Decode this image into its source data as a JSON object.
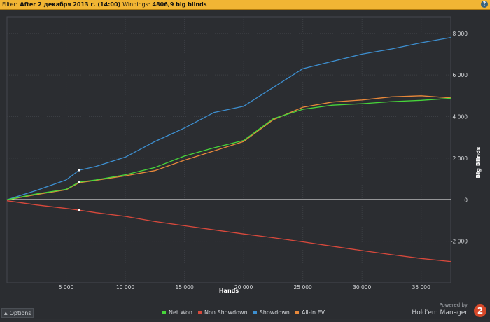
{
  "filter": {
    "label": "Filter:",
    "value": "After 2 декабря 2013 г. (14:00)",
    "winnings_label": "Winnings:",
    "winnings_value": "4806,9 big blinds",
    "help_icon": "?"
  },
  "options_label": "Options",
  "brand": {
    "powered_by": "Powered by",
    "name": "Hold'em Manager",
    "logo_text": "2"
  },
  "colors": {
    "net_won": "#47d63a",
    "non_showdown": "#d9493c",
    "showdown": "#3d8fd0",
    "all_in_ev": "#e8883a",
    "zero_line": "#ffffff",
    "grid": "#3c3f44",
    "plot_bg": "#2b2d31"
  },
  "chart_data": {
    "type": "line",
    "xlabel": "Hands",
    "ylabel": "Big Blinds",
    "xlim": [
      0,
      37500
    ],
    "ylim": [
      -4000,
      8800
    ],
    "grid": true,
    "legend_position": "bottom",
    "x_ticks": [
      5000,
      10000,
      15000,
      20000,
      25000,
      30000,
      35000
    ],
    "x_tick_labels": [
      "5 000",
      "10 000",
      "15 000",
      "20 000",
      "25 000",
      "30 000",
      "35 000"
    ],
    "y_ticks": [
      8000,
      6000,
      4000,
      2000,
      0,
      -2000
    ],
    "y_tick_labels": [
      "8 000",
      "6 000",
      "4 000",
      "2 000",
      "0",
      "-2 000"
    ],
    "x": [
      0,
      2500,
      5000,
      6100,
      7500,
      10000,
      12500,
      15000,
      17500,
      20000,
      22500,
      25000,
      27500,
      30000,
      32500,
      35000,
      37500
    ],
    "series": [
      {
        "name": "Net Won",
        "values": [
          0,
          280,
          500,
          850,
          950,
          1200,
          1550,
          2100,
          2500,
          2850,
          3900,
          4350,
          4550,
          4620,
          4720,
          4780,
          4880
        ]
      },
      {
        "name": "Non Showdown",
        "values": [
          -50,
          -250,
          -420,
          -500,
          -620,
          -800,
          -1050,
          -1250,
          -1450,
          -1650,
          -1830,
          -2030,
          -2240,
          -2450,
          -2650,
          -2830,
          -2980
        ]
      },
      {
        "name": "Showdown",
        "values": [
          0,
          450,
          950,
          1420,
          1600,
          2050,
          2800,
          3450,
          4200,
          4500,
          5400,
          6300,
          6650,
          7000,
          7250,
          7550,
          7800
        ]
      },
      {
        "name": "All-In EV",
        "values": [
          0,
          250,
          480,
          820,
          930,
          1150,
          1400,
          1900,
          2350,
          2800,
          3850,
          4450,
          4700,
          4800,
          4950,
          5000,
          4900
        ]
      }
    ]
  }
}
